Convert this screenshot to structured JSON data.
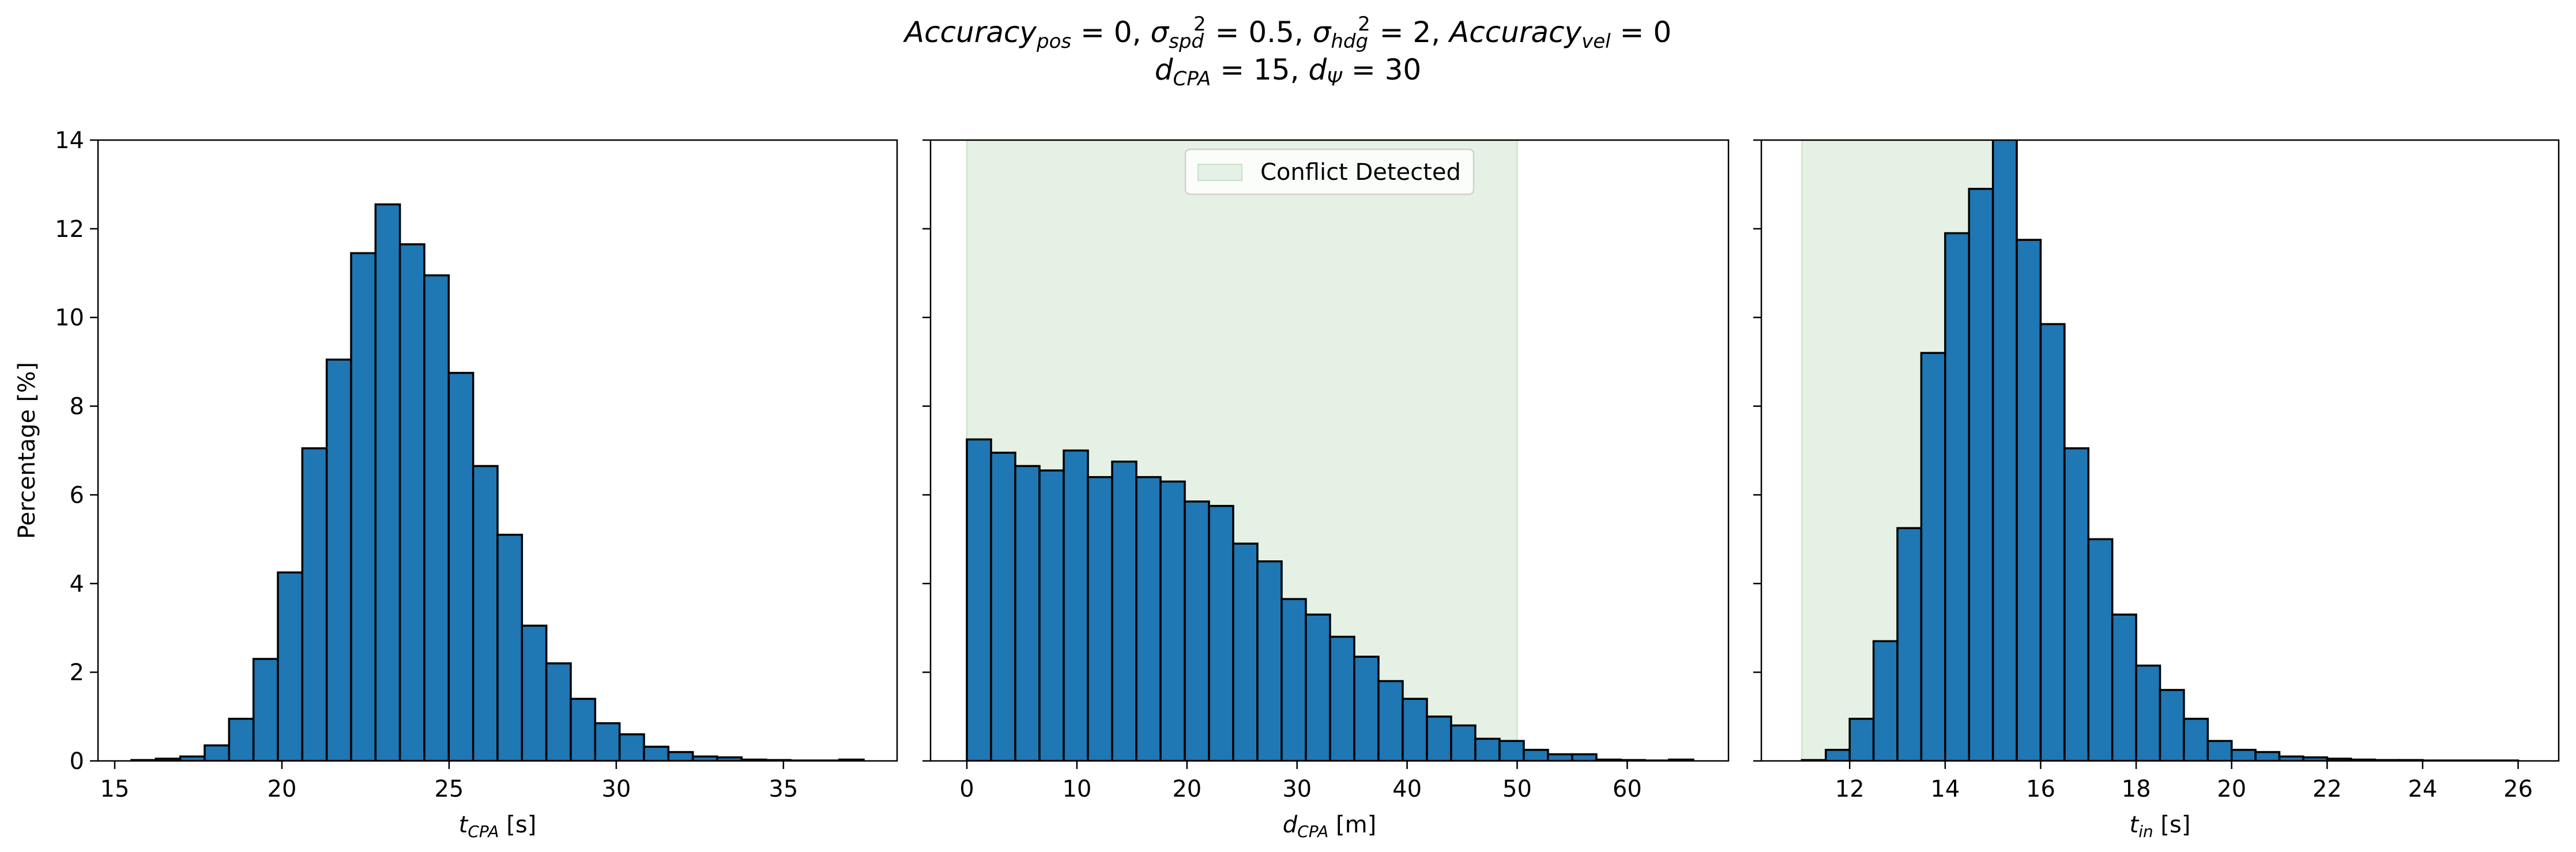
{
  "title": {
    "line1": [
      {
        "sym": "Accuracy",
        "sub": "pos",
        "sup": "",
        "eq": " = 0",
        "sep": ", "
      },
      {
        "sym": "σ",
        "sub": "spd",
        "sup": "2",
        "eq": " = 0.5",
        "sep": ", "
      },
      {
        "sym": "σ",
        "sub": "hdg",
        "sup": "2",
        "eq": " = 2",
        "sep": ", "
      },
      {
        "sym": "Accuracy",
        "sub": "vel",
        "sup": "",
        "eq": " = 0",
        "sep": ""
      }
    ],
    "line2": [
      {
        "sym": "d",
        "sub": "CPA",
        "sup": "",
        "eq": " = 15",
        "sep": ", "
      },
      {
        "sym": "d",
        "sub": "Ψ",
        "sup": "",
        "eq": " = 30",
        "sep": ""
      }
    ]
  },
  "colors": {
    "bar_fill": "#1f77b4",
    "bar_edge": "#000000",
    "conflict_fill": "#e5f1e4",
    "conflict_edge": "#c6e2c3",
    "axis": "#000000"
  },
  "chart_data": [
    {
      "type": "bar",
      "ylabel": "Percentage [%]",
      "xlabel": {
        "sym": "t",
        "sub": "CPA",
        "unit": " [s]"
      },
      "ylim": [
        0,
        14
      ],
      "yticks": [
        0,
        2,
        4,
        6,
        8,
        10,
        12,
        14
      ],
      "xlim": [
        14.5,
        38.4
      ],
      "xticks": [
        15,
        20,
        25,
        30,
        35
      ],
      "grid": false,
      "bin_start": 15.5,
      "bin_width": 0.73,
      "values": [
        0.02,
        0.05,
        0.1,
        0.35,
        0.95,
        2.3,
        4.25,
        7.05,
        9.05,
        11.45,
        12.55,
        11.65,
        10.95,
        8.75,
        6.65,
        5.1,
        3.05,
        2.2,
        1.4,
        0.85,
        0.6,
        0.32,
        0.2,
        0.1,
        0.08,
        0.03,
        0.02,
        0.01,
        0.01,
        0.03
      ],
      "shade": null,
      "legend": null
    },
    {
      "type": "bar",
      "ylabel": "",
      "xlabel": {
        "sym": "d",
        "sub": "CPA",
        "unit": " [m]"
      },
      "ylim": [
        0,
        14
      ],
      "yticks": [
        0,
        2,
        4,
        6,
        8,
        10,
        12,
        14
      ],
      "xlim": [
        -3.3,
        69.2
      ],
      "xticks": [
        0,
        10,
        20,
        30,
        40,
        50,
        60
      ],
      "grid": false,
      "bin_start": 0,
      "bin_width": 2.2,
      "values": [
        7.25,
        6.95,
        6.65,
        6.55,
        7.0,
        6.4,
        6.75,
        6.4,
        6.3,
        5.85,
        5.75,
        4.9,
        4.5,
        3.65,
        3.3,
        2.8,
        2.35,
        1.8,
        1.4,
        1.0,
        0.8,
        0.5,
        0.45,
        0.25,
        0.15,
        0.15,
        0.03,
        0.02,
        0.01,
        0.03
      ],
      "shade": [
        0,
        50
      ],
      "legend": {
        "label": "Conflict Detected",
        "position": "upper center"
      }
    },
    {
      "type": "bar",
      "ylabel": "",
      "xlabel": {
        "sym": "t",
        "sub": "in",
        "unit": " [s]"
      },
      "ylim": [
        0,
        14
      ],
      "yticks": [
        0,
        2,
        4,
        6,
        8,
        10,
        12,
        14
      ],
      "xlim": [
        10.15,
        26.85
      ],
      "xticks": [
        12,
        14,
        16,
        18,
        20,
        22,
        24,
        26
      ],
      "grid": false,
      "bin_start": 11.0,
      "bin_width": 0.5,
      "values": [
        0.02,
        0.25,
        0.95,
        2.7,
        5.25,
        9.2,
        11.9,
        12.9,
        14.1,
        11.75,
        9.85,
        7.05,
        5.0,
        3.3,
        2.15,
        1.6,
        0.95,
        0.45,
        0.25,
        0.2,
        0.1,
        0.08,
        0.05,
        0.03,
        0.02,
        0.02,
        0.01,
        0.01,
        0.01,
        0.01
      ],
      "shade": [
        11.0,
        15.5
      ],
      "legend": null
    }
  ]
}
